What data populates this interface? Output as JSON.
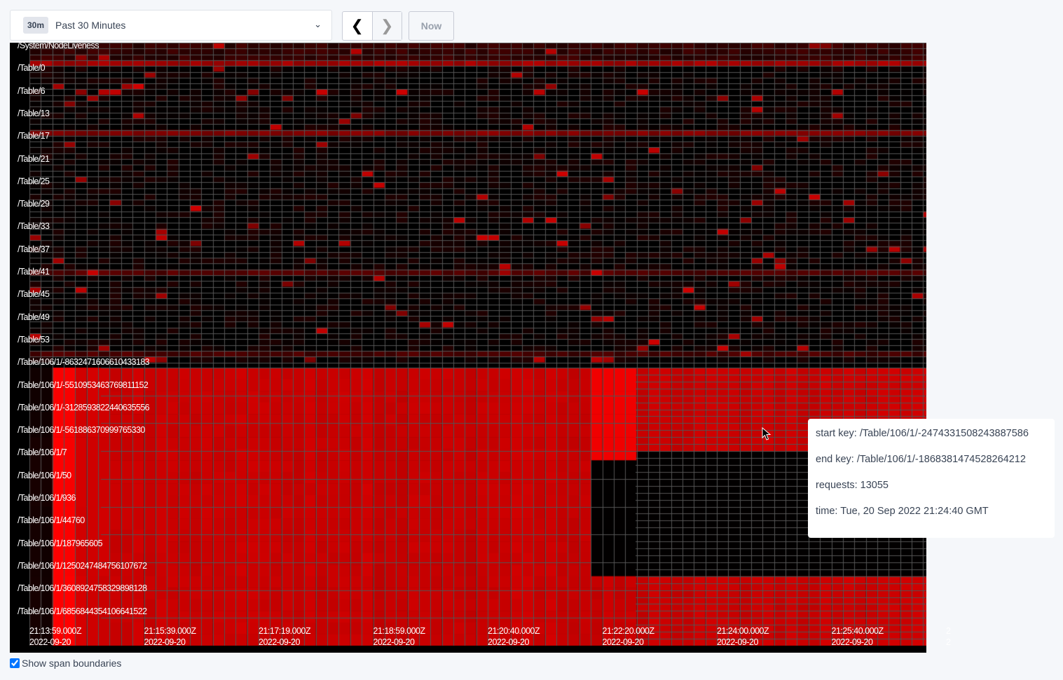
{
  "time_range": {
    "badge": "30m",
    "label": "Past 30 Minutes",
    "icon": "chevron-down-icon"
  },
  "nav": {
    "prev_icon": "chevron-left-icon",
    "next_icon": "chevron-right-icon",
    "now_label": "Now"
  },
  "heatmap": {
    "key_labels": [
      "/System/NodeLiveness",
      "/Table/0",
      "/Table/6",
      "/Table/13",
      "/Table/17",
      "/Table/21",
      "/Table/25",
      "/Table/29",
      "/Table/33",
      "/Table/37",
      "/Table/41",
      "/Table/45",
      "/Table/49",
      "/Table/53",
      "/Table/106/1/-8632471606610433183",
      "/Table/106/1/-5510953463769811152",
      "/Table/106/1/-3128593822440635556",
      "/Table/106/1/-561886370999765330",
      "/Table/106/1/7",
      "/Table/106/1/50",
      "/Table/106/1/936",
      "/Table/106/1/44760",
      "/Table/106/1/187965605",
      "/Table/106/1/1250247484756107672",
      "/Table/106/1/3608924758329898128",
      "/Table/106/1/6856844354106641522"
    ],
    "time_labels": [
      {
        "time": "21:13:59.000Z",
        "date": "2022-09-20"
      },
      {
        "time": "21:15:39.000Z",
        "date": "2022-09-20"
      },
      {
        "time": "21:17:19.000Z",
        "date": "2022-09-20"
      },
      {
        "time": "21:18:59.000Z",
        "date": "2022-09-20"
      },
      {
        "time": "21:20:40.000Z",
        "date": "2022-09-20"
      },
      {
        "time": "21:22:20.000Z",
        "date": "2022-09-20"
      },
      {
        "time": "21:24:00.000Z",
        "date": "2022-09-20"
      },
      {
        "time": "21:25:40.000Z",
        "date": "2022-09-20"
      },
      {
        "time": "2",
        "date": "2"
      }
    ],
    "colors": {
      "hot": "#ff0000",
      "warm": "#c00000",
      "cold": "#000000",
      "grid": "#555555"
    }
  },
  "tooltip": {
    "start_key": "start key: /Table/106/1/-2474331508243887586",
    "end_key": "end key: /Table/106/1/-1868381474528264212",
    "requests": "requests: 13055",
    "time": "time: Tue, 20 Sep 2022 21:24:40 GMT"
  },
  "options": {
    "show_span_boundaries": "Show span boundaries",
    "show_span_boundaries_checked": true
  }
}
